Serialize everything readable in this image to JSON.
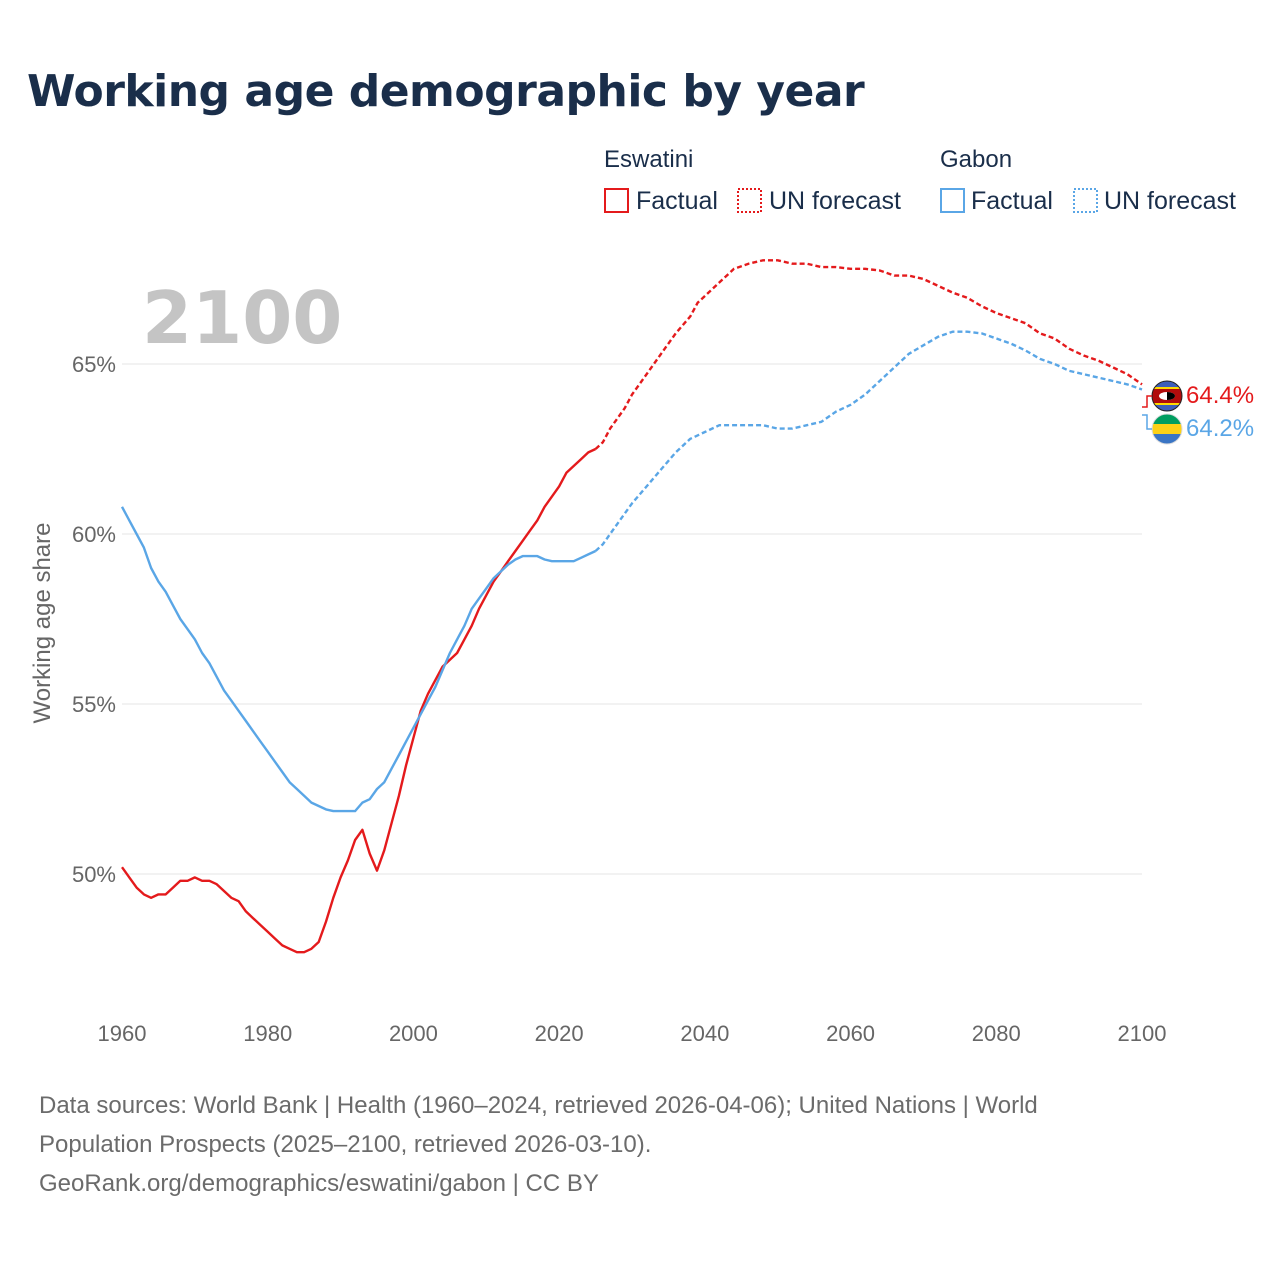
{
  "chart_data": {
    "type": "line",
    "title": "Working age demographic by year",
    "xlabel": "",
    "ylabel": "Working age share",
    "xlim": [
      1960,
      2100
    ],
    "ylim": [
      46,
      69
    ],
    "x_ticks": [
      "1960",
      "1980",
      "2000",
      "2020",
      "2040",
      "2060",
      "2080",
      "2100"
    ],
    "y_ticks": [
      {
        "value": 50,
        "label": "50%"
      },
      {
        "value": 55,
        "label": "55%"
      },
      {
        "value": 60,
        "label": "60%"
      },
      {
        "value": 65,
        "label": "65%"
      }
    ],
    "grid": true,
    "current_year": "2100",
    "legend": {
      "groups": [
        {
          "country": "Eswatini",
          "factual": "Factual",
          "forecast": "UN forecast",
          "color": "#e41a1c"
        },
        {
          "country": "Gabon",
          "factual": "Factual",
          "forecast": "UN forecast",
          "color": "#5aa6e6"
        }
      ]
    },
    "series": [
      {
        "name": "Eswatini",
        "color": "#e41a1c",
        "end_label": "64.4%",
        "factual": [
          [
            1960,
            50.2
          ],
          [
            1961,
            49.9
          ],
          [
            1962,
            49.6
          ],
          [
            1963,
            49.4
          ],
          [
            1964,
            49.3
          ],
          [
            1965,
            49.4
          ],
          [
            1966,
            49.4
          ],
          [
            1967,
            49.6
          ],
          [
            1968,
            49.8
          ],
          [
            1969,
            49.8
          ],
          [
            1970,
            49.9
          ],
          [
            1971,
            49.8
          ],
          [
            1972,
            49.8
          ],
          [
            1973,
            49.7
          ],
          [
            1974,
            49.5
          ],
          [
            1975,
            49.3
          ],
          [
            1976,
            49.2
          ],
          [
            1977,
            48.9
          ],
          [
            1978,
            48.7
          ],
          [
            1979,
            48.5
          ],
          [
            1980,
            48.3
          ],
          [
            1981,
            48.1
          ],
          [
            1982,
            47.9
          ],
          [
            1983,
            47.8
          ],
          [
            1984,
            47.7
          ],
          [
            1985,
            47.7
          ],
          [
            1986,
            47.8
          ],
          [
            1987,
            48.0
          ],
          [
            1988,
            48.6
          ],
          [
            1989,
            49.3
          ],
          [
            1990,
            49.9
          ],
          [
            1991,
            50.4
          ],
          [
            1992,
            51.0
          ],
          [
            1993,
            51.3
          ],
          [
            1994,
            50.6
          ],
          [
            1995,
            50.1
          ],
          [
            1996,
            50.7
          ],
          [
            1997,
            51.5
          ],
          [
            1998,
            52.3
          ],
          [
            1999,
            53.2
          ],
          [
            2000,
            54.0
          ],
          [
            2001,
            54.8
          ],
          [
            2002,
            55.3
          ],
          [
            2003,
            55.7
          ],
          [
            2004,
            56.1
          ],
          [
            2005,
            56.3
          ],
          [
            2006,
            56.5
          ],
          [
            2007,
            56.9
          ],
          [
            2008,
            57.3
          ],
          [
            2009,
            57.8
          ],
          [
            2010,
            58.2
          ],
          [
            2011,
            58.6
          ],
          [
            2012,
            58.9
          ],
          [
            2013,
            59.2
          ],
          [
            2014,
            59.5
          ],
          [
            2015,
            59.8
          ],
          [
            2016,
            60.1
          ],
          [
            2017,
            60.4
          ],
          [
            2018,
            60.8
          ],
          [
            2019,
            61.1
          ],
          [
            2020,
            61.4
          ],
          [
            2021,
            61.8
          ],
          [
            2022,
            62.0
          ],
          [
            2023,
            62.2
          ],
          [
            2024,
            62.4
          ],
          [
            2025,
            62.5
          ]
        ],
        "forecast": [
          [
            2025,
            62.5
          ],
          [
            2026,
            62.7
          ],
          [
            2027,
            63.1
          ],
          [
            2028,
            63.4
          ],
          [
            2029,
            63.7
          ],
          [
            2030,
            64.1
          ],
          [
            2032,
            64.7
          ],
          [
            2034,
            65.3
          ],
          [
            2036,
            65.9
          ],
          [
            2038,
            66.4
          ],
          [
            2039,
            66.8
          ],
          [
            2040,
            67.0
          ],
          [
            2042,
            67.4
          ],
          [
            2044,
            67.8
          ],
          [
            2046,
            67.95
          ],
          [
            2048,
            68.05
          ],
          [
            2050,
            68.05
          ],
          [
            2052,
            67.95
          ],
          [
            2054,
            67.95
          ],
          [
            2056,
            67.85
          ],
          [
            2058,
            67.85
          ],
          [
            2060,
            67.8
          ],
          [
            2062,
            67.8
          ],
          [
            2064,
            67.75
          ],
          [
            2066,
            67.6
          ],
          [
            2068,
            67.6
          ],
          [
            2070,
            67.5
          ],
          [
            2072,
            67.3
          ],
          [
            2074,
            67.1
          ],
          [
            2076,
            66.95
          ],
          [
            2078,
            66.7
          ],
          [
            2080,
            66.5
          ],
          [
            2082,
            66.35
          ],
          [
            2084,
            66.2
          ],
          [
            2086,
            65.9
          ],
          [
            2088,
            65.75
          ],
          [
            2090,
            65.45
          ],
          [
            2092,
            65.25
          ],
          [
            2094,
            65.1
          ],
          [
            2096,
            64.9
          ],
          [
            2098,
            64.7
          ],
          [
            2100,
            64.4
          ]
        ]
      },
      {
        "name": "Gabon",
        "color": "#5aa6e6",
        "end_label": "64.2%",
        "factual": [
          [
            1960,
            60.8
          ],
          [
            1961,
            60.4
          ],
          [
            1962,
            60.0
          ],
          [
            1963,
            59.6
          ],
          [
            1964,
            59.0
          ],
          [
            1965,
            58.6
          ],
          [
            1966,
            58.3
          ],
          [
            1967,
            57.9
          ],
          [
            1968,
            57.5
          ],
          [
            1969,
            57.2
          ],
          [
            1970,
            56.9
          ],
          [
            1971,
            56.5
          ],
          [
            1972,
            56.2
          ],
          [
            1973,
            55.8
          ],
          [
            1974,
            55.4
          ],
          [
            1975,
            55.1
          ],
          [
            1976,
            54.8
          ],
          [
            1977,
            54.5
          ],
          [
            1978,
            54.2
          ],
          [
            1979,
            53.9
          ],
          [
            1980,
            53.6
          ],
          [
            1981,
            53.3
          ],
          [
            1982,
            53.0
          ],
          [
            1983,
            52.7
          ],
          [
            1984,
            52.5
          ],
          [
            1985,
            52.3
          ],
          [
            1986,
            52.1
          ],
          [
            1987,
            52.0
          ],
          [
            1988,
            51.9
          ],
          [
            1989,
            51.85
          ],
          [
            1990,
            51.85
          ],
          [
            1991,
            51.85
          ],
          [
            1992,
            51.85
          ],
          [
            1993,
            52.1
          ],
          [
            1994,
            52.2
          ],
          [
            1995,
            52.5
          ],
          [
            1996,
            52.7
          ],
          [
            1997,
            53.1
          ],
          [
            1998,
            53.5
          ],
          [
            1999,
            53.9
          ],
          [
            2000,
            54.3
          ],
          [
            2001,
            54.7
          ],
          [
            2002,
            55.1
          ],
          [
            2003,
            55.5
          ],
          [
            2004,
            56.0
          ],
          [
            2005,
            56.5
          ],
          [
            2006,
            56.9
          ],
          [
            2007,
            57.3
          ],
          [
            2008,
            57.8
          ],
          [
            2009,
            58.1
          ],
          [
            2010,
            58.4
          ],
          [
            2011,
            58.7
          ],
          [
            2012,
            58.9
          ],
          [
            2013,
            59.1
          ],
          [
            2014,
            59.25
          ],
          [
            2015,
            59.35
          ],
          [
            2016,
            59.35
          ],
          [
            2017,
            59.35
          ],
          [
            2018,
            59.25
          ],
          [
            2019,
            59.2
          ],
          [
            2020,
            59.2
          ],
          [
            2021,
            59.2
          ],
          [
            2022,
            59.2
          ],
          [
            2023,
            59.3
          ],
          [
            2024,
            59.4
          ],
          [
            2025,
            59.5
          ]
        ],
        "forecast": [
          [
            2025,
            59.5
          ],
          [
            2026,
            59.7
          ],
          [
            2027,
            60.0
          ],
          [
            2028,
            60.3
          ],
          [
            2029,
            60.6
          ],
          [
            2030,
            60.9
          ],
          [
            2032,
            61.4
          ],
          [
            2034,
            61.9
          ],
          [
            2036,
            62.4
          ],
          [
            2038,
            62.8
          ],
          [
            2040,
            63.0
          ],
          [
            2042,
            63.2
          ],
          [
            2044,
            63.2
          ],
          [
            2046,
            63.2
          ],
          [
            2048,
            63.2
          ],
          [
            2050,
            63.1
          ],
          [
            2052,
            63.1
          ],
          [
            2054,
            63.2
          ],
          [
            2056,
            63.3
          ],
          [
            2058,
            63.6
          ],
          [
            2060,
            63.8
          ],
          [
            2062,
            64.1
          ],
          [
            2064,
            64.5
          ],
          [
            2066,
            64.9
          ],
          [
            2068,
            65.3
          ],
          [
            2070,
            65.55
          ],
          [
            2072,
            65.8
          ],
          [
            2074,
            65.95
          ],
          [
            2076,
            65.95
          ],
          [
            2078,
            65.9
          ],
          [
            2080,
            65.75
          ],
          [
            2082,
            65.6
          ],
          [
            2084,
            65.4
          ],
          [
            2086,
            65.15
          ],
          [
            2088,
            65.0
          ],
          [
            2090,
            64.8
          ],
          [
            2092,
            64.7
          ],
          [
            2094,
            64.6
          ],
          [
            2096,
            64.5
          ],
          [
            2098,
            64.4
          ],
          [
            2100,
            64.25
          ]
        ]
      }
    ]
  },
  "footer": {
    "line1": "Data sources: World Bank | Health (1960–2024, retrieved 2026-04-06); United Nations | World",
    "line2": "Population Prospects (2025–2100, retrieved 2026-03-10).",
    "line3": "GeoRank.org/demographics/eswatini/gabon | CC BY"
  }
}
